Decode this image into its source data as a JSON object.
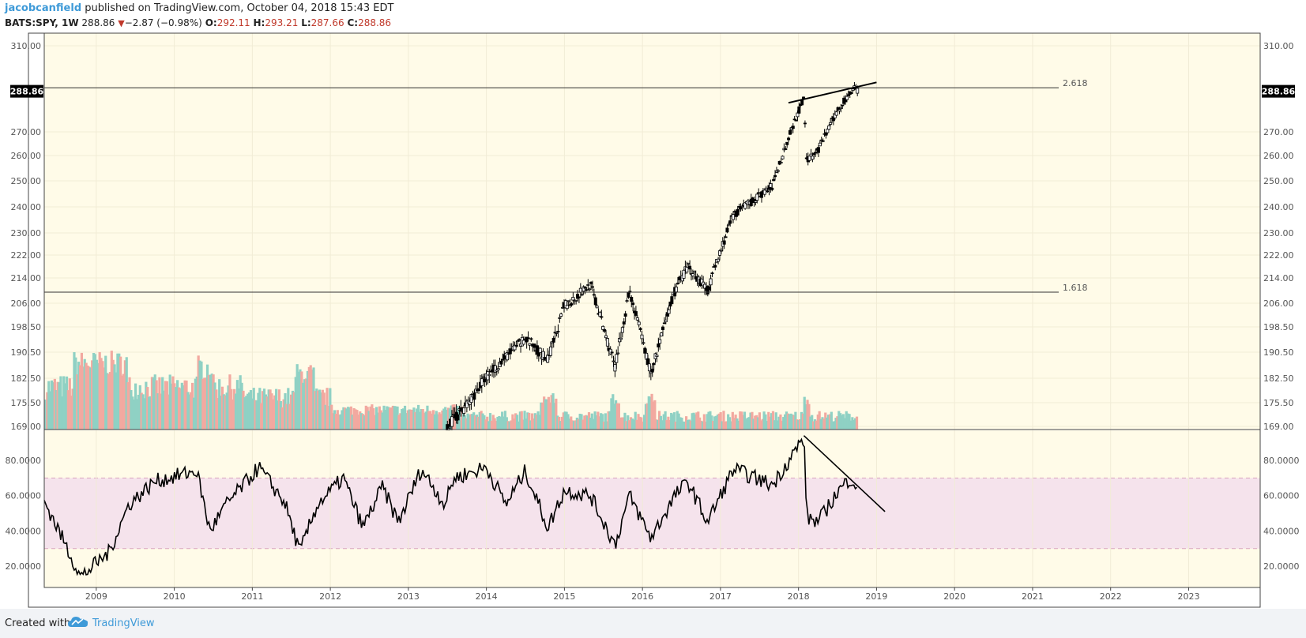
{
  "header": {
    "author": "jacobcanfield",
    "published_text": "published on TradingView.com, October 04, 2018 15:43 EDT",
    "symbol": "BATS:SPY, 1W",
    "last": "288.86",
    "change": "−2.87 (−0.98%)",
    "open_label": "O:",
    "open": "292.11",
    "high_label": "H:",
    "high": "293.21",
    "low_label": "L:",
    "low": "287.66",
    "close_label": "C:",
    "close": "288.86"
  },
  "footer": {
    "created_with": "Created with",
    "brand": "TradingView"
  },
  "colors": {
    "plot_bg": "#fffbe8",
    "rsi_band": "#f5e3ec",
    "volume_up": "#8fd1c4",
    "volume_down": "#f2a9a0",
    "candle": "#000000",
    "author_blue": "#3e9ad8",
    "price_down_red": "#c0392b"
  },
  "chart_data": [
    {
      "type": "candlestick",
      "name": "price",
      "ylim": [
        169,
        313
      ],
      "y_ticks": [
        169,
        175.5,
        182.5,
        190.5,
        198.5,
        206,
        214,
        222,
        230,
        240,
        250,
        260,
        270,
        310
      ],
      "y_tick_labels": [
        "169.00",
        "175.50",
        "182.50",
        "190.50",
        "198.50",
        "206.00",
        "214.00",
        "222.00",
        "230.00",
        "240.00",
        "250.00",
        "260.00",
        "270.00",
        "310.00"
      ],
      "last_price_label": "288.86",
      "last_price": 288.86,
      "fib_levels": [
        {
          "label": "2.618",
          "value": 290.5
        },
        {
          "label": "1.618",
          "value": 209.5
        }
      ],
      "trendline": {
        "from": [
          "2017-11-15",
          283.5
        ],
        "to": [
          "2019-01-01",
          293.0
        ]
      },
      "key_points": [
        [
          "2013-07-01",
          169
        ],
        [
          "2013-10-01",
          175
        ],
        [
          "2014-01-01",
          183
        ],
        [
          "2014-07-01",
          195
        ],
        [
          "2014-10-15",
          188
        ],
        [
          "2015-01-01",
          205
        ],
        [
          "2015-05-01",
          212
        ],
        [
          "2015-08-25",
          186
        ],
        [
          "2015-11-01",
          210
        ],
        [
          "2016-02-10",
          184
        ],
        [
          "2016-06-01",
          210
        ],
        [
          "2016-08-01",
          218
        ],
        [
          "2016-11-01",
          210
        ],
        [
          "2017-03-01",
          237
        ],
        [
          "2017-09-01",
          248
        ],
        [
          "2018-01-26",
          286
        ],
        [
          "2018-02-09",
          258
        ],
        [
          "2018-04-01",
          262
        ],
        [
          "2018-07-01",
          280
        ],
        [
          "2018-09-20",
          291
        ],
        [
          "2018-10-04",
          288.86
        ]
      ],
      "x_start": "2008-05-01",
      "x_end": "2023-12-01",
      "x_ticks": [
        "2009",
        "2010",
        "2011",
        "2012",
        "2013",
        "2014",
        "2015",
        "2016",
        "2017",
        "2018",
        "2019",
        "2020",
        "2021",
        "2022",
        "2023"
      ]
    },
    {
      "type": "line",
      "name": "RSI",
      "ylim": [
        8,
        97
      ],
      "y_ticks": [
        20,
        40,
        60,
        80
      ],
      "y_tick_labels": [
        "20.0000",
        "40.0000",
        "60.0000",
        "80.0000"
      ],
      "band": [
        30,
        70
      ],
      "trendline": {
        "from": [
          "2018-01-26",
          94
        ],
        "to": [
          "2019-02-10",
          51
        ]
      },
      "key_points": [
        [
          "2008-05-01",
          57
        ],
        [
          "2008-07-01",
          42
        ],
        [
          "2008-10-20",
          14
        ],
        [
          "2009-03-01",
          28
        ],
        [
          "2009-06-01",
          55
        ],
        [
          "2009-10-01",
          68
        ],
        [
          "2010-04-15",
          74
        ],
        [
          "2010-06-15",
          40
        ],
        [
          "2010-09-01",
          55
        ],
        [
          "2011-02-01",
          76
        ],
        [
          "2011-06-01",
          56
        ],
        [
          "2011-08-10",
          28
        ],
        [
          "2011-11-01",
          55
        ],
        [
          "2012-03-01",
          70
        ],
        [
          "2012-06-01",
          42
        ],
        [
          "2012-09-01",
          65
        ],
        [
          "2012-11-15",
          45
        ],
        [
          "2013-03-01",
          75
        ],
        [
          "2013-06-20",
          55
        ],
        [
          "2013-08-01",
          70
        ],
        [
          "2014-01-01",
          76
        ],
        [
          "2014-04-01",
          55
        ],
        [
          "2014-07-01",
          74
        ],
        [
          "2014-10-15",
          42
        ],
        [
          "2015-01-01",
          63
        ],
        [
          "2015-05-01",
          60
        ],
        [
          "2015-08-25",
          32
        ],
        [
          "2015-11-01",
          60
        ],
        [
          "2016-02-10",
          36
        ],
        [
          "2016-06-01",
          60
        ],
        [
          "2016-08-01",
          68
        ],
        [
          "2016-11-01",
          45
        ],
        [
          "2017-03-01",
          75
        ],
        [
          "2017-09-01",
          66
        ],
        [
          "2018-01-26",
          93
        ],
        [
          "2018-02-09",
          48
        ],
        [
          "2018-04-01",
          45
        ],
        [
          "2018-07-01",
          62
        ],
        [
          "2018-09-01",
          70
        ],
        [
          "2018-10-04",
          65
        ]
      ]
    }
  ]
}
